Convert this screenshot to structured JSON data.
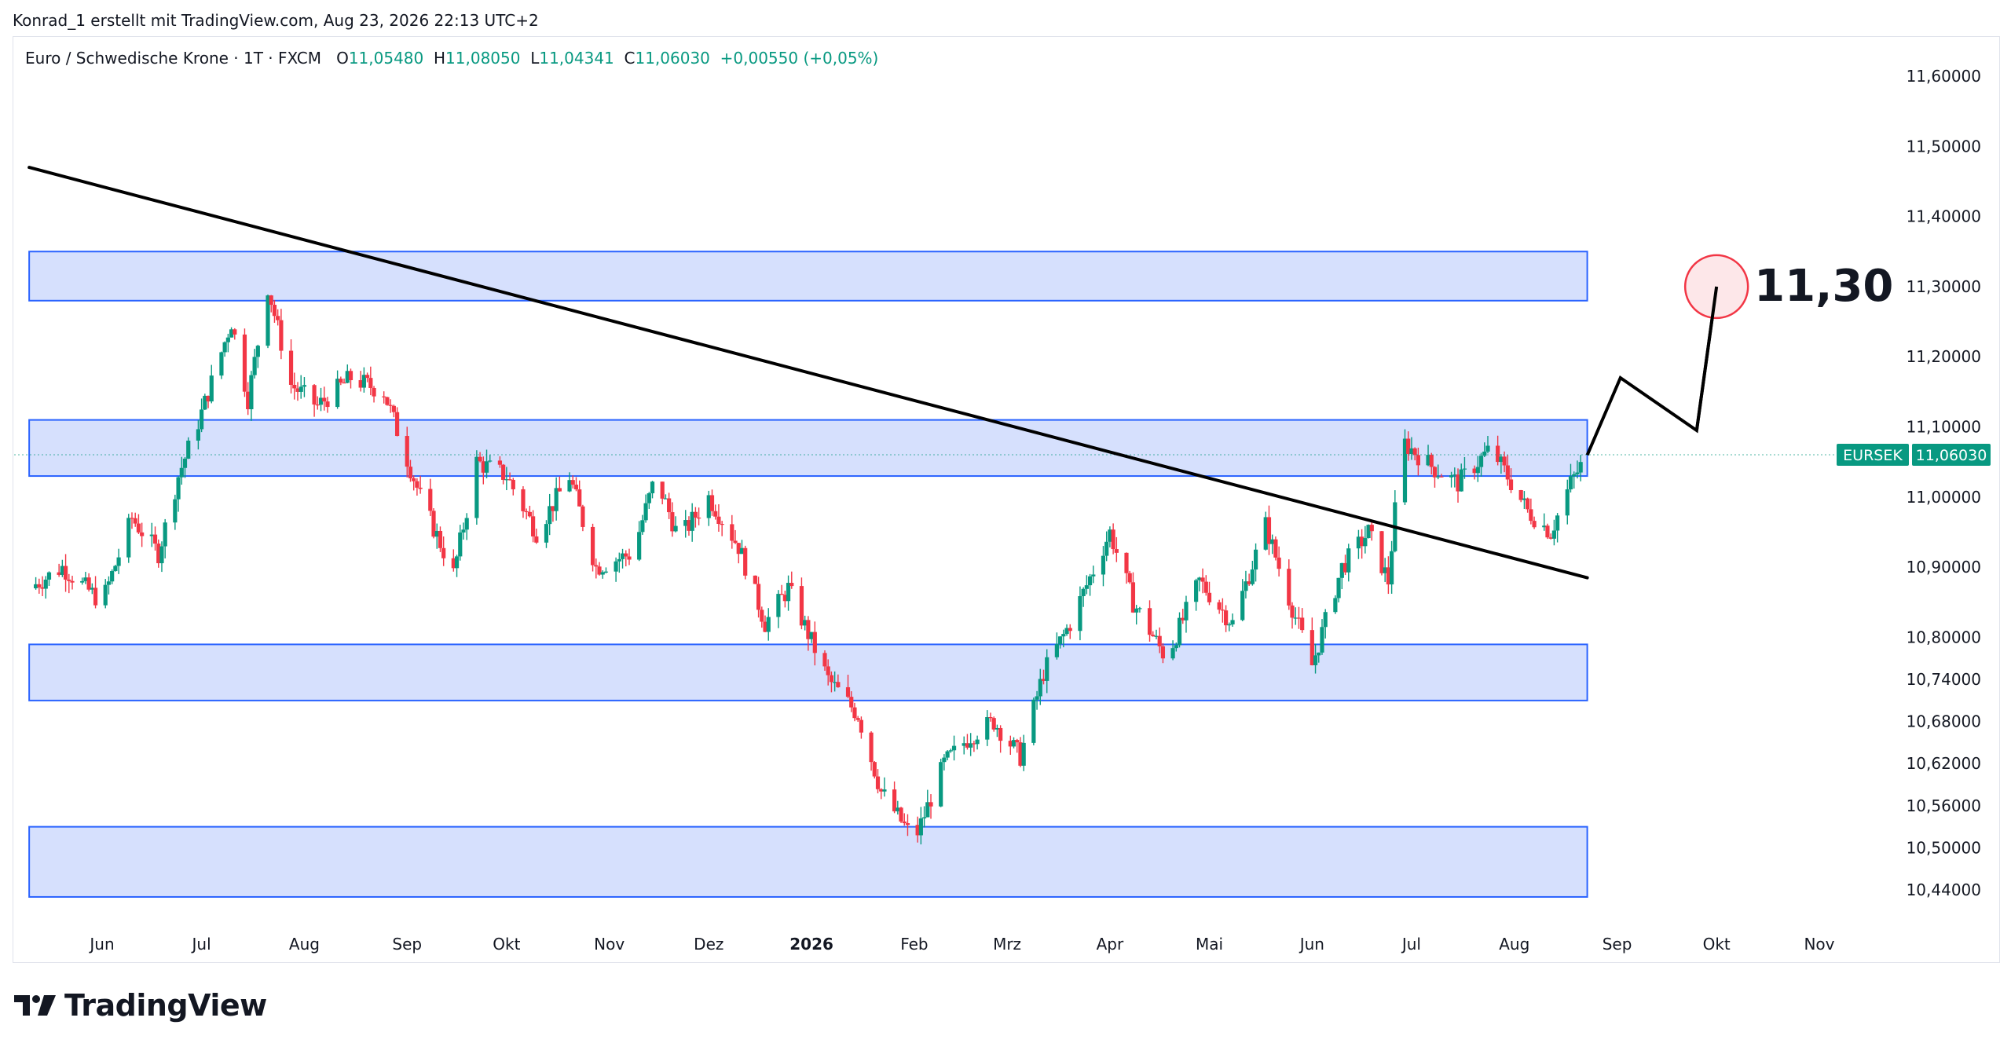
{
  "header": {
    "attribution": "Konrad_1 erstellt mit TradingView.com, Aug 23, 2026 22:13 UTC+2"
  },
  "legend": {
    "symbol": "Euro / Schwedische Krone · 1T · FXCM",
    "o_label": "O",
    "o_value": "11,05480",
    "h_label": "H",
    "h_value": "11,08050",
    "l_label": "L",
    "l_value": "11,04341",
    "c_label": "C",
    "c_value": "11,06030",
    "change": "+0,00550 (+0,05%)"
  },
  "brand": {
    "name": "TradingView"
  },
  "colors": {
    "up": "#089981",
    "down": "#f23645",
    "zone_fill": "#d6e0fd",
    "zone_border": "#2962ff",
    "line": "#000000",
    "price_tag": "#089981",
    "target_circle_fill": "#fde7e9",
    "target_circle_stroke": "#f23645"
  },
  "chart_data": {
    "type": "candlestick",
    "symbol": "EURSEK",
    "last_price": 11.0603,
    "last_price_label": "11,06030",
    "symbol_tag": "EURSEK",
    "ylim": [
      10.38,
      11.66
    ],
    "y_ticks": [
      {
        "value": 11.6,
        "label": "11,60000"
      },
      {
        "value": 11.5,
        "label": "11,50000"
      },
      {
        "value": 11.4,
        "label": "11,40000"
      },
      {
        "value": 11.3,
        "label": "11,30000"
      },
      {
        "value": 11.2,
        "label": "11,20000"
      },
      {
        "value": 11.1,
        "label": "11,10000"
      },
      {
        "value": 11.0,
        "label": "11,00000"
      },
      {
        "value": 10.9,
        "label": "10,90000"
      },
      {
        "value": 10.8,
        "label": "10,80000"
      },
      {
        "value": 10.74,
        "label": "10,74000"
      },
      {
        "value": 10.68,
        "label": "10,68000"
      },
      {
        "value": 10.62,
        "label": "10,62000"
      },
      {
        "value": 10.56,
        "label": "10,56000"
      },
      {
        "value": 10.5,
        "label": "10,50000"
      },
      {
        "value": 10.44,
        "label": "10,44000"
      }
    ],
    "x_ticks": [
      {
        "date": "2025-06-01",
        "label": "Jun",
        "bold": false
      },
      {
        "date": "2025-07-01",
        "label": "Jul",
        "bold": false
      },
      {
        "date": "2025-08-01",
        "label": "Aug",
        "bold": false
      },
      {
        "date": "2025-09-01",
        "label": "Sep",
        "bold": false
      },
      {
        "date": "2025-10-01",
        "label": "Okt",
        "bold": false
      },
      {
        "date": "2025-11-01",
        "label": "Nov",
        "bold": false
      },
      {
        "date": "2025-12-01",
        "label": "Dez",
        "bold": false
      },
      {
        "date": "2026-01-01",
        "label": "2026",
        "bold": true
      },
      {
        "date": "2026-02-01",
        "label": "Feb",
        "bold": false
      },
      {
        "date": "2026-03-01",
        "label": "Mrz",
        "bold": false
      },
      {
        "date": "2026-04-01",
        "label": "Apr",
        "bold": false
      },
      {
        "date": "2026-05-01",
        "label": "Mai",
        "bold": false
      },
      {
        "date": "2026-06-01",
        "label": "Jun",
        "bold": false
      },
      {
        "date": "2026-07-01",
        "label": "Jul",
        "bold": false
      },
      {
        "date": "2026-08-01",
        "label": "Aug",
        "bold": false
      },
      {
        "date": "2026-09-01",
        "label": "Sep",
        "bold": false
      },
      {
        "date": "2026-10-01",
        "label": "Okt",
        "bold": false
      },
      {
        "date": "2026-11-01",
        "label": "Nov",
        "bold": false
      }
    ],
    "zones": [
      {
        "from_date": "2025-05-10",
        "to_date": "2026-08-23",
        "low": 11.28,
        "high": 11.35
      },
      {
        "from_date": "2025-05-10",
        "to_date": "2026-08-23",
        "low": 11.03,
        "high": 11.11
      },
      {
        "from_date": "2025-05-10",
        "to_date": "2026-08-23",
        "low": 10.71,
        "high": 10.79
      },
      {
        "from_date": "2025-05-10",
        "to_date": "2026-08-23",
        "low": 10.43,
        "high": 10.53
      }
    ],
    "trendline": {
      "from": [
        "2025-05-10",
        11.47
      ],
      "to": [
        "2026-08-23",
        10.885
      ]
    },
    "projection": [
      [
        "2026-08-23",
        11.06
      ],
      [
        "2026-09-02",
        11.17
      ],
      [
        "2026-09-25",
        11.095
      ],
      [
        "2026-10-01",
        11.3
      ]
    ],
    "target": {
      "date": "2026-10-01",
      "value": 11.3,
      "label": "11,30"
    },
    "waypoints": [
      [
        "2025-05-10",
        10.87
      ],
      [
        "2025-05-20",
        10.9
      ],
      [
        "2025-06-01",
        10.85
      ],
      [
        "2025-06-10",
        10.97
      ],
      [
        "2025-06-18",
        10.92
      ],
      [
        "2025-06-24",
        11.03
      ],
      [
        "2025-07-01",
        11.12
      ],
      [
        "2025-07-10",
        11.25
      ],
      [
        "2025-07-15",
        11.14
      ],
      [
        "2025-07-21",
        11.3
      ],
      [
        "2025-07-28",
        11.16
      ],
      [
        "2025-08-05",
        11.13
      ],
      [
        "2025-08-15",
        11.17
      ],
      [
        "2025-08-25",
        11.15
      ],
      [
        "2025-09-05",
        11.0
      ],
      [
        "2025-09-15",
        10.89
      ],
      [
        "2025-09-22",
        11.05
      ],
      [
        "2025-10-01",
        11.03
      ],
      [
        "2025-10-10",
        10.95
      ],
      [
        "2025-10-20",
        11.03
      ],
      [
        "2025-10-28",
        10.9
      ],
      [
        "2025-11-08",
        10.92
      ],
      [
        "2025-11-15",
        11.03
      ],
      [
        "2025-11-22",
        10.94
      ],
      [
        "2025-12-01",
        11.0
      ],
      [
        "2025-12-10",
        10.93
      ],
      [
        "2025-12-18",
        10.82
      ],
      [
        "2025-12-25",
        10.87
      ],
      [
        "2026-01-06",
        10.74
      ],
      [
        "2026-01-15",
        10.69
      ],
      [
        "2026-01-22",
        10.58
      ],
      [
        "2026-02-01",
        10.51
      ],
      [
        "2026-02-10",
        10.62
      ],
      [
        "2026-02-18",
        10.66
      ],
      [
        "2026-02-25",
        10.68
      ],
      [
        "2026-03-05",
        10.63
      ],
      [
        "2026-03-12",
        10.75
      ],
      [
        "2026-03-20",
        10.82
      ],
      [
        "2026-04-01",
        10.95
      ],
      [
        "2026-04-08",
        10.85
      ],
      [
        "2026-04-18",
        10.77
      ],
      [
        "2026-04-28",
        10.88
      ],
      [
        "2026-05-08",
        10.82
      ],
      [
        "2026-05-18",
        10.96
      ],
      [
        "2026-05-24",
        10.87
      ],
      [
        "2026-06-01",
        10.76
      ],
      [
        "2026-06-10",
        10.9
      ],
      [
        "2026-06-18",
        10.95
      ],
      [
        "2026-06-24",
        10.88
      ],
      [
        "2026-06-28",
        11.08
      ],
      [
        "2026-07-08",
        11.04
      ],
      [
        "2026-07-15",
        11.02
      ],
      [
        "2026-07-25",
        11.07
      ],
      [
        "2026-08-05",
        10.98
      ],
      [
        "2026-08-12",
        10.95
      ],
      [
        "2026-08-18",
        11.02
      ],
      [
        "2026-08-23",
        11.06
      ]
    ]
  }
}
